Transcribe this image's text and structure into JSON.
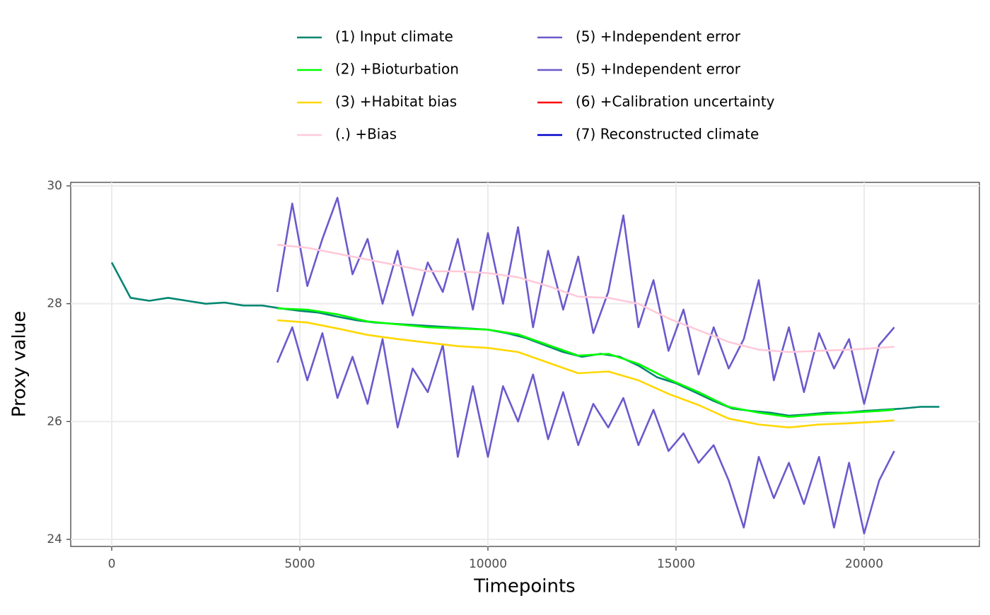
{
  "chart_data": {
    "type": "line",
    "x_label": "Timepoints",
    "y_label": "Proxy value",
    "xlim": [
      -1090,
      23064
    ],
    "ylim": [
      23.88,
      30.06
    ],
    "xticks": [
      0,
      5000,
      10000,
      15000,
      20000
    ],
    "yticks": [
      24,
      26,
      28,
      30
    ],
    "grid": true,
    "legend": "top",
    "series": [
      {
        "name": "(1) Input climate",
        "color": "#018571",
        "x": [
          0,
          500,
          1000,
          1500,
          2000,
          2500,
          3000,
          3500,
          4000,
          4500,
          5000,
          5500,
          6000,
          6500,
          7000,
          7500,
          8000,
          8500,
          9000,
          9500,
          10000,
          10500,
          11000,
          11500,
          12000,
          12500,
          13000,
          13500,
          14000,
          14500,
          15000,
          15500,
          16000,
          16500,
          17000,
          17500,
          18000,
          18500,
          19000,
          19500,
          20000,
          20500,
          21000,
          21500,
          22000
        ],
        "values": [
          28.7,
          28.1,
          28.05,
          28.1,
          28.05,
          28.0,
          28.02,
          27.97,
          27.97,
          27.92,
          27.88,
          27.85,
          27.78,
          27.72,
          27.68,
          27.66,
          27.64,
          27.62,
          27.6,
          27.58,
          27.56,
          27.5,
          27.42,
          27.3,
          27.18,
          27.1,
          27.15,
          27.1,
          26.95,
          26.75,
          26.65,
          26.5,
          26.35,
          26.22,
          26.18,
          26.15,
          26.1,
          26.12,
          26.15,
          26.15,
          26.18,
          26.2,
          26.22,
          26.25,
          26.25
        ]
      },
      {
        "name": "(2) +Bioturbation",
        "color": "#00ff00",
        "x": [
          4400,
          5200,
          6000,
          6800,
          7600,
          8400,
          9200,
          10000,
          10800,
          11600,
          12400,
          13200,
          14000,
          14800,
          15600,
          16400,
          17200,
          18000,
          18800,
          19600,
          20400,
          20800
        ],
        "values": [
          27.92,
          27.9,
          27.82,
          27.7,
          27.65,
          27.6,
          27.58,
          27.56,
          27.48,
          27.3,
          27.12,
          27.15,
          26.98,
          26.72,
          26.5,
          26.25,
          26.15,
          26.08,
          26.12,
          26.15,
          26.18,
          26.2
        ]
      },
      {
        "name": "(3) +Habitat bias",
        "color": "#ffd700",
        "x": [
          4400,
          5200,
          6000,
          6800,
          7600,
          8400,
          9200,
          10000,
          10800,
          11600,
          12400,
          13200,
          14000,
          14800,
          15600,
          16400,
          17200,
          18000,
          18800,
          19600,
          20400,
          20800
        ],
        "values": [
          27.72,
          27.68,
          27.58,
          27.47,
          27.4,
          27.34,
          27.28,
          27.25,
          27.18,
          27.0,
          26.82,
          26.85,
          26.7,
          26.47,
          26.28,
          26.05,
          25.95,
          25.9,
          25.95,
          25.97,
          26.0,
          26.02
        ]
      },
      {
        "name": "(.) +Bias",
        "color": "#ffc9d9",
        "x": [
          4400,
          5200,
          6000,
          6800,
          7600,
          8400,
          9200,
          10000,
          10800,
          11600,
          12400,
          13200,
          14000,
          14800,
          15600,
          16400,
          17200,
          18000,
          18800,
          19600,
          20400,
          20800
        ],
        "values": [
          29.0,
          28.95,
          28.85,
          28.75,
          28.65,
          28.55,
          28.55,
          28.52,
          28.45,
          28.3,
          28.12,
          28.1,
          28.0,
          27.75,
          27.55,
          27.35,
          27.22,
          27.18,
          27.2,
          27.22,
          27.25,
          27.27
        ]
      },
      {
        "name": "(5) +Independent error",
        "color": "#6a5acd",
        "x": [
          4400,
          4800,
          5200,
          5600,
          6000,
          6400,
          6800,
          7200,
          7600,
          8000,
          8400,
          8800,
          9200,
          9600,
          10000,
          10400,
          10800,
          11200,
          11600,
          12000,
          12400,
          12800,
          13200,
          13600,
          14000,
          14400,
          14800,
          15200,
          15600,
          16000,
          16400,
          16800,
          17200,
          17600,
          18000,
          18400,
          18800,
          19200,
          19600,
          20000,
          20400,
          20800
        ],
        "values": [
          28.2,
          29.7,
          28.3,
          29.1,
          29.8,
          28.5,
          29.1,
          28.0,
          28.9,
          27.8,
          28.7,
          28.2,
          29.1,
          27.9,
          29.2,
          28.0,
          29.3,
          27.6,
          28.9,
          27.9,
          28.8,
          27.5,
          28.2,
          29.5,
          27.6,
          28.4,
          27.2,
          27.9,
          26.8,
          27.6,
          26.9,
          27.4,
          28.4,
          26.7,
          27.6,
          26.5,
          27.5,
          26.9,
          27.4,
          26.3,
          27.3,
          27.6
        ]
      },
      {
        "name": "(5) +Independent error",
        "color": "#6a5acd",
        "x": [
          4400,
          4800,
          5200,
          5600,
          6000,
          6400,
          6800,
          7200,
          7600,
          8000,
          8400,
          8800,
          9200,
          9600,
          10000,
          10400,
          10800,
          11200,
          11600,
          12000,
          12400,
          12800,
          13200,
          13600,
          14000,
          14400,
          14800,
          15200,
          15600,
          16000,
          16400,
          16800,
          17200,
          17600,
          18000,
          18400,
          18800,
          19200,
          19600,
          20000,
          20400,
          20800
        ],
        "values": [
          27.0,
          27.6,
          26.7,
          27.5,
          26.4,
          27.1,
          26.3,
          27.4,
          25.9,
          26.9,
          26.5,
          27.3,
          25.4,
          26.6,
          25.4,
          26.6,
          26.0,
          26.8,
          25.7,
          26.5,
          25.6,
          26.3,
          25.9,
          26.4,
          25.6,
          26.2,
          25.5,
          25.8,
          25.3,
          25.6,
          25.0,
          24.2,
          25.4,
          24.7,
          25.3,
          24.6,
          25.4,
          24.2,
          25.3,
          24.1,
          25.0,
          25.5
        ]
      },
      {
        "name": "(6) +Calibration uncertainty",
        "color": "#ff0000",
        "x": [],
        "values": []
      },
      {
        "name": "(7) Reconstructed climate",
        "color": "#0000cd",
        "x": [],
        "values": []
      }
    ]
  }
}
